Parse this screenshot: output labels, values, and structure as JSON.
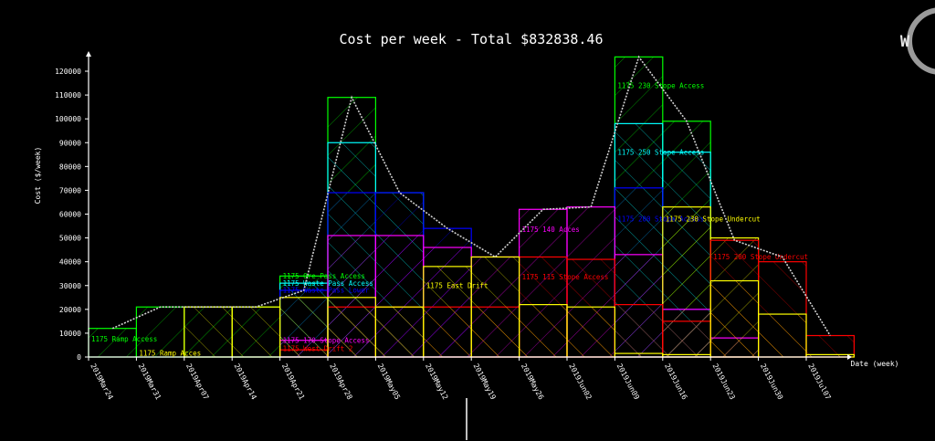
{
  "chart_data": {
    "type": "bar",
    "title": "Cost per week - Total $832838.46",
    "xlabel": "Date (week)",
    "ylabel": "Cost ($/week)",
    "ylim": [
      0,
      125000
    ],
    "yticks": [
      0,
      10000,
      20000,
      30000,
      40000,
      50000,
      60000,
      70000,
      80000,
      90000,
      100000,
      110000,
      120000
    ],
    "categories": [
      "2019Mar24",
      "2019Mar31",
      "2019Apr07",
      "2019Apr14",
      "2019Apr21",
      "2019Apr28",
      "2019May05",
      "2019May12",
      "2019May19",
      "2019May26",
      "2019Jun02",
      "2019Jun09",
      "2019Jun16",
      "2019Jun23",
      "2019Jun30",
      "2019Jul07"
    ],
    "total_line": [
      12000,
      21000,
      21000,
      21000,
      28000,
      109000,
      69000,
      54000,
      42000,
      62000,
      63000,
      126000,
      99000,
      49000,
      42000,
      9000
    ],
    "series": [
      {
        "name": "1175 Ramp Access",
        "color": "#00ff00",
        "values": [
          12000,
          21000,
          21000,
          21000,
          34000,
          109000,
          0,
          0,
          0,
          0,
          0,
          126000,
          99000,
          0,
          0,
          0
        ]
      },
      {
        "name": "1175 East Drift",
        "color": "#ffff00",
        "values": [
          0,
          0,
          21000,
          21000,
          25000,
          25000,
          21000,
          38000,
          42000,
          22000,
          21000,
          1500,
          1000,
          32000,
          18000,
          1000
        ]
      },
      {
        "name": "1175 140 Acces",
        "color": "#ff00ff",
        "values": [
          0,
          0,
          0,
          0,
          7000,
          51000,
          51000,
          46000,
          42000,
          62000,
          63000,
          43000,
          20000,
          8000,
          0,
          0
        ]
      },
      {
        "name": "1175 115 Stope Access",
        "color": "#ff0000",
        "values": [
          0,
          0,
          0,
          0,
          3000,
          21000,
          21000,
          21000,
          21000,
          42000,
          41000,
          22000,
          15000,
          49000,
          40000,
          9000
        ]
      },
      {
        "name": "1175 200 Stope Access",
        "color": "#0000ff",
        "values": [
          0,
          0,
          0,
          0,
          28000,
          69000,
          69000,
          54000,
          0,
          0,
          0,
          71000,
          20000,
          0,
          0,
          0
        ]
      },
      {
        "name": "1175 250 Stope Access",
        "color": "#00ffff",
        "values": [
          0,
          0,
          0,
          0,
          31000,
          90000,
          69000,
          0,
          0,
          0,
          0,
          98000,
          86000,
          0,
          0,
          0
        ]
      },
      {
        "name": "1175 230 Stope Undercut",
        "color": "#ffff00",
        "values": [
          0,
          0,
          0,
          0,
          0,
          0,
          0,
          0,
          0,
          0,
          0,
          0,
          63000,
          50000,
          0,
          0
        ]
      }
    ],
    "annotations": [
      {
        "text": "1175 Ramp Access",
        "color": "#00ff00",
        "x": "2019Mar24",
        "y": 6500
      },
      {
        "text": "1175 Ore Pass Access",
        "color": "#00ff00",
        "x": "2019Apr21",
        "y": 33000
      },
      {
        "text": "1175 Waste Pass Access",
        "color": "#00ffff",
        "x": "2019Apr21",
        "y": 30000
      },
      {
        "text": "1175 Waste Pass Lower",
        "color": "#0000ff",
        "x": "2019Apr21",
        "y": 27000
      },
      {
        "text": "1175 170 Stope Access",
        "color": "#ff00ff",
        "x": "2019Apr21",
        "y": 6000
      },
      {
        "text": "1175 West Drift 2",
        "color": "#ff0000",
        "x": "2019Apr21",
        "y": 2500
      },
      {
        "text": "1175 East Drift",
        "color": "#ffff00",
        "x": "2019May12",
        "y": 29000
      },
      {
        "text": "1175 140 Acces",
        "color": "#ff00ff",
        "x": "2019May26",
        "y": 52500
      },
      {
        "text": "1175 115 Stope Access",
        "color": "#ff0000",
        "x": "2019May26",
        "y": 32500
      },
      {
        "text": "1175 230 Stope Access",
        "color": "#00ff00",
        "x": "2019Jun09",
        "y": 113000
      },
      {
        "text": "1175 250 Stope Access",
        "color": "#00ffff",
        "x": "2019Jun09",
        "y": 85000
      },
      {
        "text": "1175 200 Stope Access",
        "color": "#0000ff",
        "x": "2019Jun09",
        "y": 57000
      },
      {
        "text": "1175 230 Stope Undercut",
        "color": "#ffff00",
        "x": "2019Jun16",
        "y": 57000
      },
      {
        "text": "1175 200 Stope Undercut",
        "color": "#ff0000",
        "x": "2019Jun23",
        "y": 41000
      },
      {
        "text": "1175 Ramp Acces",
        "color": "#ffff00",
        "x": "2019Mar31",
        "y": 500
      }
    ],
    "line_color": "#ffffff",
    "grid": false,
    "legend": "none"
  },
  "watermark": {
    "letter": "W"
  }
}
